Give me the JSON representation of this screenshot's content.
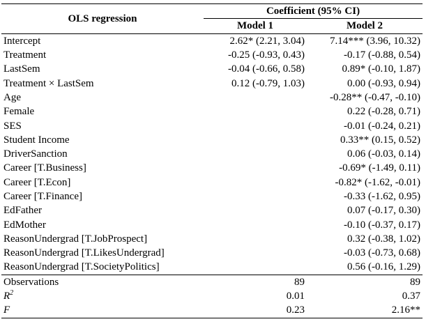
{
  "table": {
    "title": "OLS regression",
    "coef_header": "Coefficient (95% CI)",
    "models": [
      "Model 1",
      "Model 2"
    ],
    "rows": [
      {
        "label": "Intercept",
        "m1": "2.62* (2.21, 3.04)",
        "m2": "7.14*** (3.96, 10.32)"
      },
      {
        "label": "Treatment",
        "m1": "-0.25 (-0.93, 0.43)",
        "m2": "-0.17 (-0.88, 0.54)"
      },
      {
        "label": "LastSem",
        "m1": "-0.04 (-0.66, 0.58)",
        "m2": "0.89* (-0.10, 1.87)"
      },
      {
        "label": "Treatment × LastSem",
        "m1": "0.12 (-0.79, 1.03)",
        "m2": "0.00 (-0.93, 0.94)"
      },
      {
        "label": "Age",
        "m1": "",
        "m2": "-0.28** (-0.47, -0.10)"
      },
      {
        "label": "Female",
        "m1": "",
        "m2": "0.22 (-0.28, 0.71)"
      },
      {
        "label": "SES",
        "m1": "",
        "m2": "-0.01 (-0.24, 0.21)"
      },
      {
        "label": "Student Income",
        "m1": "",
        "m2": "0.33** (0.15, 0.52)"
      },
      {
        "label": "DriverSanction",
        "m1": "",
        "m2": "0.06 (-0.03, 0.14)"
      },
      {
        "label": "Career [T.Business]",
        "m1": "",
        "m2": "-0.69* (-1.49, 0.11)"
      },
      {
        "label": "Career [T.Econ]",
        "m1": "",
        "m2": "-0.82* (-1.62, -0.01)"
      },
      {
        "label": "Career [T.Finance]",
        "m1": "",
        "m2": "-0.33 (-1.62, 0.95)"
      },
      {
        "label": "EdFather",
        "m1": "",
        "m2": "0.07 (-0.17, 0.30)"
      },
      {
        "label": "EdMother",
        "m1": "",
        "m2": "-0.10 (-0.37, 0.17)"
      },
      {
        "label": "ReasonUndergrad [T.JobProspect]",
        "m1": "",
        "m2": "0.32 (-0.38, 1.02)"
      },
      {
        "label": "ReasonUndergrad [T.LikesUndergrad]",
        "m1": "",
        "m2": "-0.03 (-0.73, 0.68)"
      },
      {
        "label": "ReasonUndergrad [T.SocietyPolitics]",
        "m1": "",
        "m2": "0.56 (-0.16, 1.29)"
      }
    ],
    "stats": [
      {
        "label": "Observations",
        "m1": "89",
        "m2": "89"
      },
      {
        "label": "R",
        "sup": "2",
        "m1": "0.01",
        "m2": "0.37"
      },
      {
        "label": "F",
        "m1": "0.23",
        "m2": "2.16**"
      }
    ]
  }
}
